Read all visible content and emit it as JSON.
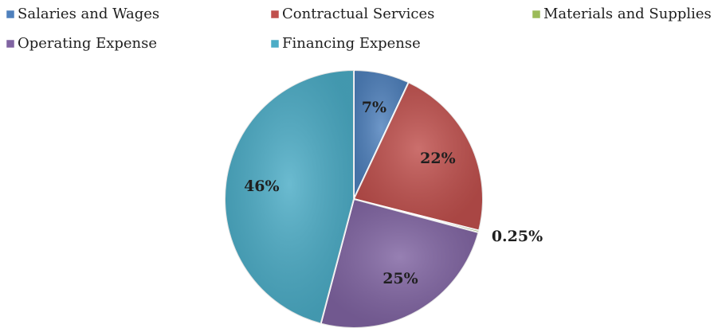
{
  "chart_data": {
    "type": "pie",
    "categories": [
      "Salaries and Wages",
      "Contractual Services",
      "Materials and Supplies",
      "Operating Expense",
      "Financing Expense"
    ],
    "values": [
      7,
      22,
      0.25,
      25,
      46
    ],
    "value_labels": [
      "7%",
      "22%",
      "0.25%",
      "25%",
      "46%"
    ],
    "colors": [
      "#4f81bd",
      "#c0504d",
      "#9bbb59",
      "#8064a2",
      "#4bacc6"
    ],
    "legend": "top"
  }
}
